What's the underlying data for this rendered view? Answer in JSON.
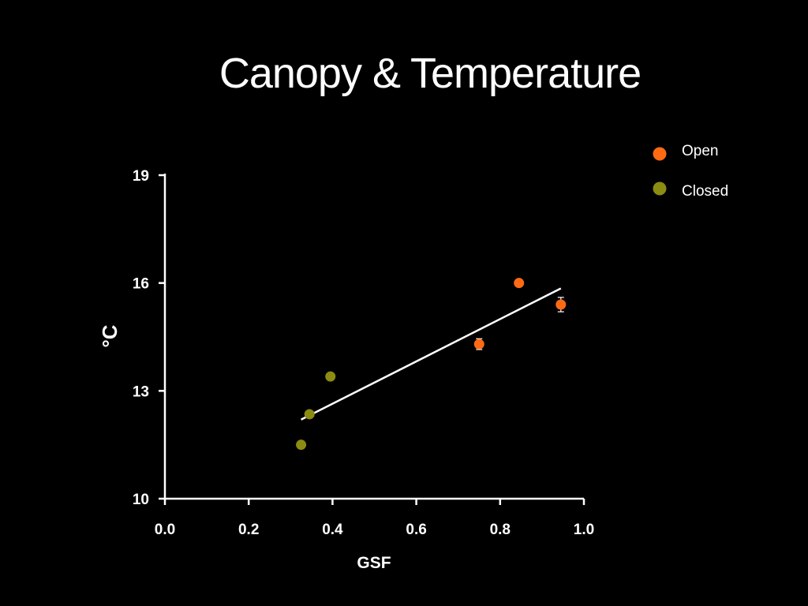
{
  "slide": {
    "title": "Canopy & Temperature"
  },
  "chart_data": {
    "type": "scatter",
    "title": "Canopy & Temperature",
    "xlabel": "GSF",
    "ylabel": "°C",
    "xlim": [
      0.0,
      1.0
    ],
    "ylim": [
      10,
      19
    ],
    "xticks": [
      "0.0",
      "0.2",
      "0.4",
      "0.6",
      "0.8",
      "1.0"
    ],
    "yticks": [
      "10",
      "13",
      "16",
      "19"
    ],
    "grid": false,
    "legend_position": "top-right",
    "series": [
      {
        "name": "Open",
        "color": "#ff6a13",
        "points": [
          {
            "x": 0.75,
            "y": 14.3,
            "err": 0.15
          },
          {
            "x": 0.845,
            "y": 16.0,
            "err": 0.05
          },
          {
            "x": 0.945,
            "y": 15.4,
            "err": 0.2
          }
        ]
      },
      {
        "name": "Closed",
        "color": "#8c8c13",
        "points": [
          {
            "x": 0.325,
            "y": 11.5,
            "err": 0.05
          },
          {
            "x": 0.345,
            "y": 12.35,
            "err": 0.05
          },
          {
            "x": 0.395,
            "y": 13.4,
            "err": 0.05
          }
        ]
      }
    ],
    "trendline": {
      "color": "#ffffff",
      "x": [
        0.325,
        0.945
      ],
      "y": [
        12.2,
        15.85
      ]
    }
  }
}
